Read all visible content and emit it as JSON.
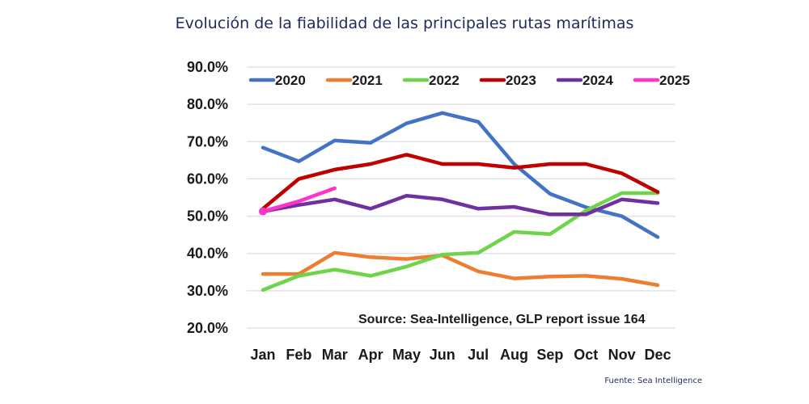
{
  "chart_data": {
    "type": "line",
    "title": "Evolución de la fiabilidad de las principales rutas marítimas",
    "xlabel": "",
    "ylabel": "",
    "categories": [
      "Jan",
      "Feb",
      "Mar",
      "Apr",
      "May",
      "Jun",
      "Jul",
      "Aug",
      "Sep",
      "Oct",
      "Nov",
      "Dec"
    ],
    "ylim": [
      20,
      90
    ],
    "yticks": [
      20,
      30,
      40,
      50,
      60,
      70,
      80,
      90
    ],
    "ytick_labels": [
      "20.0%",
      "30.0%",
      "40.0%",
      "50.0%",
      "60.0%",
      "70.0%",
      "80.0%",
      "90.0%"
    ],
    "grid": true,
    "legend": "top",
    "annotation": "Source: Sea-Intelligence, GLP report issue 164",
    "series": [
      {
        "name": "2020",
        "color": "#4472c4",
        "values": [
          68.4,
          64.7,
          70.3,
          69.7,
          74.9,
          77.7,
          75.3,
          64.0,
          56.0,
          52.4,
          50.0,
          44.4
        ]
      },
      {
        "name": "2021",
        "color": "#ed7d31",
        "values": [
          34.5,
          34.5,
          40.2,
          39.0,
          38.5,
          39.5,
          35.2,
          33.3,
          33.8,
          34.0,
          33.2,
          31.5
        ]
      },
      {
        "name": "2022",
        "color": "#70d44b",
        "values": [
          30.2,
          34.0,
          35.7,
          34.0,
          36.5,
          39.7,
          40.2,
          45.8,
          45.2,
          51.5,
          56.2,
          56.2
        ]
      },
      {
        "name": "2023",
        "color": "#c00000",
        "values": [
          52.0,
          60.0,
          62.5,
          64.0,
          66.5,
          64.0,
          64.0,
          63.0,
          64.0,
          64.0,
          61.5,
          56.5
        ]
      },
      {
        "name": "2024",
        "color": "#7030a0",
        "values": [
          51.3,
          53.0,
          54.5,
          52.0,
          55.5,
          54.5,
          52.0,
          52.5,
          50.5,
          50.5,
          54.5,
          53.5
        ]
      },
      {
        "name": "2025",
        "color": "#ff33cc",
        "values": [
          51.3,
          54.0,
          57.5
        ]
      }
    ]
  },
  "footer": {
    "source_note": "Fuente: Sea Intelligence"
  }
}
